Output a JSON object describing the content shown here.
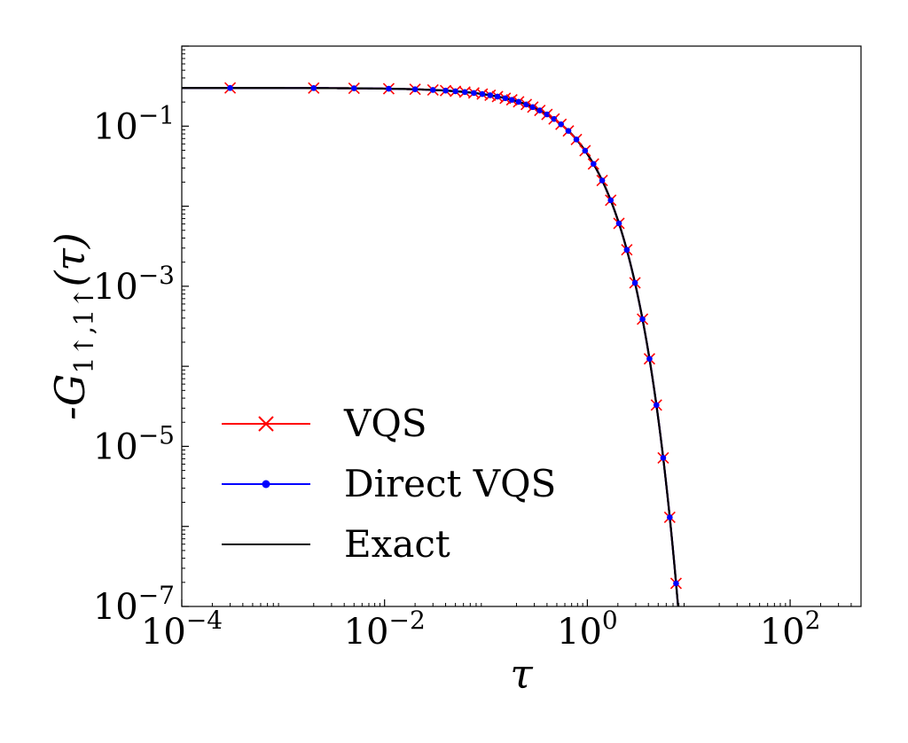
{
  "chart_data": {
    "type": "line",
    "xlabel": "τ",
    "ylabel": "-G",
    "ylabel_sub": "1↑,1↑",
    "ylabel_arg": "(τ)",
    "x_scale": "log",
    "y_scale": "log",
    "xlim": [
      0.0001,
      500
    ],
    "ylim": [
      1e-07,
      1
    ],
    "x_ticks": [
      {
        "value": 0.0001,
        "base": "10",
        "exp": "−4"
      },
      {
        "value": 0.01,
        "base": "10",
        "exp": "−2"
      },
      {
        "value": 1,
        "base": "10",
        "exp": "0"
      },
      {
        "value": 100,
        "base": "10",
        "exp": "2"
      }
    ],
    "y_ticks": [
      {
        "value": 1e-07,
        "base": "10",
        "exp": "−7"
      },
      {
        "value": 1e-05,
        "base": "10",
        "exp": "−5"
      },
      {
        "value": 0.001,
        "base": "10",
        "exp": "−3"
      },
      {
        "value": 0.1,
        "base": "10",
        "exp": "−1"
      }
    ],
    "legend_position": "lower-left",
    "grid": false,
    "series": [
      {
        "name": "VQS",
        "color": "#ff0000",
        "marker": "x",
        "style": "marker"
      },
      {
        "name": "Direct VQS",
        "color": "#0000ff",
        "marker": "dot",
        "style": "marker"
      },
      {
        "name": "Exact",
        "color": "#000000",
        "marker": "none",
        "style": "line"
      }
    ],
    "model": {
      "amplitude": 0.3,
      "rate": 1.9
    },
    "sample_tau": [
      0.0003,
      0.002,
      0.005,
      0.011,
      0.02,
      0.03,
      0.04,
      0.05,
      0.062,
      0.076,
      0.092,
      0.11,
      0.13,
      0.155,
      0.18,
      0.21,
      0.25,
      0.29,
      0.34,
      0.4,
      0.47,
      0.55,
      0.65,
      0.78,
      0.95,
      1.15,
      1.4,
      1.7,
      2.05,
      2.45,
      2.95,
      3.5,
      4.1,
      4.8,
      5.6,
      6.5,
      7.5
    ]
  }
}
